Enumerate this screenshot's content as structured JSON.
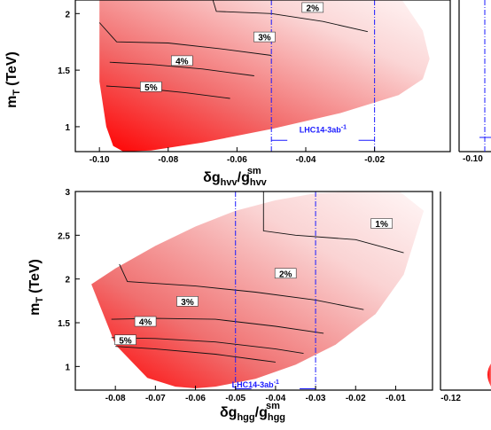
{
  "chart_data": [
    {
      "type": "area",
      "panel": "top-left",
      "xlabel": "δg_hvv/g_hvv^sm",
      "xlabel_main": "δg",
      "xlabel_sub": "hvv",
      "xlabel_den": "/g",
      "xlabel_den_sub": "hvv",
      "xlabel_sup": "sm",
      "ylabel": "m_T (TeV)",
      "ylabel_main": "m",
      "ylabel_sub": "T",
      "ylabel_unit": "(TeV)",
      "xlim": [
        -0.107,
        0.002
      ],
      "ylim": [
        0.78,
        2.12
      ],
      "x_ticks": [
        -0.1,
        -0.08,
        -0.06,
        -0.04,
        -0.02
      ],
      "x_tick_labels": [
        "-0.10",
        "-0.08",
        "-0.06",
        "-0.04",
        "-0.02"
      ],
      "y_ticks": [
        1,
        1.5,
        2
      ],
      "y_tick_labels": [
        "1",
        "1.5",
        "2"
      ],
      "region_boundary": [
        [
          -0.1,
          2.12
        ],
        [
          -0.1,
          1.4
        ],
        [
          -0.098,
          1.0
        ],
        [
          -0.096,
          0.83
        ],
        [
          -0.093,
          0.78
        ],
        [
          -0.085,
          0.79
        ],
        [
          -0.07,
          0.86
        ],
        [
          -0.05,
          0.98
        ],
        [
          -0.03,
          1.12
        ],
        [
          -0.013,
          1.28
        ],
        [
          -0.006,
          1.42
        ],
        [
          -0.004,
          1.6
        ],
        [
          -0.006,
          1.85
        ],
        [
          -0.012,
          2.12
        ]
      ],
      "contours": [
        {
          "label": "2%",
          "points": [
            [
              -0.067,
              2.12
            ],
            [
              -0.066,
              2.02
            ],
            [
              -0.05,
              2.0
            ],
            [
              -0.035,
              1.93
            ],
            [
              -0.022,
              1.84
            ]
          ],
          "label_at": [
            -0.038,
            2.05
          ]
        },
        {
          "label": "3%",
          "points": [
            [
              -0.1,
              1.92
            ],
            [
              -0.095,
              1.75
            ],
            [
              -0.08,
              1.74
            ],
            [
              -0.065,
              1.69
            ],
            [
              -0.05,
              1.63
            ]
          ],
          "label_at": [
            -0.052,
            1.79
          ]
        },
        {
          "label": "4%",
          "points": [
            [
              -0.097,
              1.57
            ],
            [
              -0.085,
              1.55
            ],
            [
              -0.07,
              1.51
            ],
            [
              -0.055,
              1.45
            ]
          ],
          "label_at": [
            -0.076,
            1.58
          ]
        },
        {
          "label": "5%",
          "points": [
            [
              -0.098,
              1.36
            ],
            [
              -0.088,
              1.34
            ],
            [
              -0.075,
              1.3
            ],
            [
              -0.062,
              1.25
            ]
          ],
          "label_at": [
            -0.085,
            1.35
          ]
        }
      ],
      "lhc_lines": [
        -0.05,
        -0.02
      ],
      "lhc_label": "LHC14-3ab",
      "lhc_label_sup": "-1",
      "lhc_label_at": [
        -0.035,
        0.95
      ],
      "lhc_arrow_y": 0.88
    },
    {
      "type": "area",
      "panel": "bottom-left",
      "xlabel": "δg_hgg/g_hgg^sm",
      "xlabel_main": "δg",
      "xlabel_sub": "hgg",
      "xlabel_den": "/g",
      "xlabel_den_sub": "hgg",
      "xlabel_sup": "sm",
      "ylabel": "m_T (TeV)",
      "ylabel_main": "m",
      "ylabel_sub": "T",
      "ylabel_unit": "(TeV)",
      "xlim": [
        -0.09,
        -0.0008
      ],
      "ylim": [
        0.73,
        3.0
      ],
      "x_ticks": [
        -0.08,
        -0.07,
        -0.06,
        -0.05,
        -0.04,
        -0.03,
        -0.02,
        -0.01
      ],
      "x_tick_labels": [
        "-0.08",
        "-0.07",
        "-0.06",
        "-0.05",
        "-0.04",
        "-0.03",
        "-0.02",
        "-0.01"
      ],
      "y_ticks": [
        1,
        1.5,
        2,
        2.5,
        3
      ],
      "y_tick_labels": [
        "1",
        "1.5",
        "2",
        "2.5",
        "3"
      ],
      "region_boundary": [
        [
          -0.086,
          1.94
        ],
        [
          -0.08,
          2.12
        ],
        [
          -0.07,
          2.38
        ],
        [
          -0.06,
          2.6
        ],
        [
          -0.05,
          2.78
        ],
        [
          -0.04,
          2.9
        ],
        [
          -0.03,
          2.98
        ],
        [
          -0.02,
          3.0
        ],
        [
          -0.009,
          3.0
        ],
        [
          -0.003,
          2.78
        ],
        [
          -0.008,
          2.05
        ],
        [
          -0.015,
          1.6
        ],
        [
          -0.025,
          1.25
        ],
        [
          -0.035,
          1.02
        ],
        [
          -0.045,
          0.86
        ],
        [
          -0.055,
          0.77
        ],
        [
          -0.06,
          0.75
        ],
        [
          -0.065,
          0.77
        ],
        [
          -0.072,
          0.87
        ],
        [
          -0.08,
          1.25
        ],
        [
          -0.086,
          1.94
        ]
      ],
      "contours": [
        {
          "label": "1%",
          "points": [
            [
              -0.043,
              3.0
            ],
            [
              -0.043,
              2.55
            ],
            [
              -0.035,
              2.5
            ],
            [
              -0.02,
              2.45
            ],
            [
              -0.008,
              2.3
            ]
          ],
          "label_at": [
            -0.0135,
            2.63
          ]
        },
        {
          "label": "2%",
          "points": [
            [
              -0.079,
              2.17
            ],
            [
              -0.077,
              1.97
            ],
            [
              -0.06,
              1.92
            ],
            [
              -0.045,
              1.85
            ],
            [
              -0.03,
              1.76
            ],
            [
              -0.018,
              1.65
            ]
          ],
          "label_at": [
            -0.0375,
            2.06
          ]
        },
        {
          "label": "3%",
          "points": [
            [
              -0.081,
              1.54
            ],
            [
              -0.07,
              1.55
            ],
            [
              -0.055,
              1.54
            ],
            [
              -0.04,
              1.46
            ],
            [
              -0.028,
              1.38
            ]
          ],
          "label_at": [
            -0.062,
            1.74
          ]
        },
        {
          "label": "4%",
          "points": [
            [
              -0.081,
              1.33
            ],
            [
              -0.07,
              1.32
            ],
            [
              -0.055,
              1.28
            ],
            [
              -0.04,
              1.2
            ],
            [
              -0.033,
              1.15
            ]
          ],
          "label_at": [
            -0.0725,
            1.51
          ]
        },
        {
          "label": "5%",
          "points": [
            [
              -0.08,
              1.23
            ],
            [
              -0.07,
              1.2
            ],
            [
              -0.055,
              1.14
            ],
            [
              -0.045,
              1.08
            ],
            [
              -0.04,
              1.05
            ]
          ],
          "label_at": [
            -0.0775,
            1.3
          ]
        }
      ],
      "lhc_lines": [
        -0.05,
        -0.03
      ],
      "lhc_label": "LHC14-3ab",
      "lhc_label_sup": "-1",
      "lhc_label_at": [
        -0.045,
        0.76
      ],
      "lhc_arrow_y": 0.745
    },
    {
      "type": "area",
      "panel": "right-edge",
      "partial": true,
      "x_tick_labels_visible": [
        "-0.10",
        "-0.12"
      ]
    }
  ]
}
